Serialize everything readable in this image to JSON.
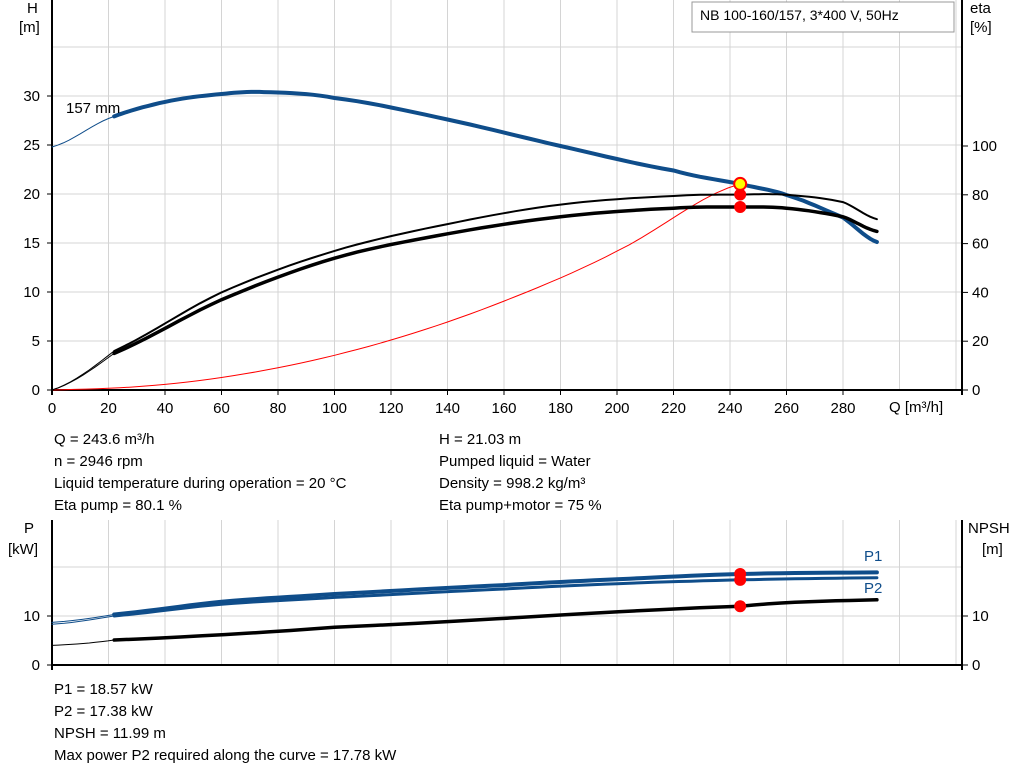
{
  "chart_data": [
    {
      "type": "line",
      "title": "NB 100-160/157, 3*400 V, 50Hz",
      "xlabel": "Q [m³/h]",
      "ylabel": "H\n[m]",
      "y2label": "eta\n[%]",
      "xlim": [
        0,
        322
      ],
      "ylim": [
        0,
        40
      ],
      "y2lim": [
        0,
        160
      ],
      "xticks": [
        0,
        20,
        40,
        60,
        80,
        100,
        120,
        140,
        160,
        180,
        200,
        220,
        240,
        260,
        280
      ],
      "yticks": [
        0,
        5,
        10,
        15,
        20,
        25,
        30
      ],
      "y2ticks": [
        0,
        20,
        40,
        60,
        80,
        100
      ],
      "grid": true,
      "annotation": "157 mm",
      "series": [
        {
          "name": "157 mm",
          "axis": "H",
          "color": "#0f4d8a",
          "x": [
            0,
            20,
            40,
            60,
            75,
            100,
            140,
            180,
            220,
            243.6,
            260,
            280,
            292
          ],
          "y": [
            24.8,
            27.7,
            29.4,
            30.2,
            30.4,
            29.8,
            27.6,
            24.9,
            22.4,
            21.03,
            19.9,
            17.6,
            15.1
          ]
        },
        {
          "axis": "eta",
          "color": "#000000",
          "x": [
            0,
            22,
            60,
            100,
            140,
            180,
            220,
            243.6,
            260,
            280,
            292
          ],
          "y": [
            0,
            16,
            40,
            57,
            68,
            76,
            79.5,
            80.1,
            80,
            77,
            70
          ]
        },
        {
          "axis": "eta",
          "color": "#000000",
          "x": [
            0,
            22,
            60,
            100,
            140,
            180,
            220,
            243.6,
            260,
            280,
            292
          ],
          "y": [
            0,
            15,
            37,
            54,
            64,
            71,
            74.5,
            75,
            74.5,
            71,
            65
          ]
        },
        {
          "axis": "H",
          "color": "#ff0000",
          "x": [
            0,
            40,
            80,
            120,
            160,
            200,
            243.6
          ],
          "y": [
            0,
            0.57,
            2.27,
            5.1,
            9.07,
            14.17,
            21.03
          ]
        }
      ],
      "duty_point": {
        "Q": 243.6,
        "H": 21.03,
        "eta_pump": 80.1,
        "eta_total": 75
      }
    },
    {
      "type": "line",
      "ylabel": "P\n[kW]",
      "y2label": "NPSH\n[m]",
      "xlim": [
        0,
        322
      ],
      "ylim": [
        0,
        30
      ],
      "y2lim": [
        0,
        30
      ],
      "yticks": [
        0,
        10
      ],
      "y2ticks": [
        0,
        10
      ],
      "grid": true,
      "series": [
        {
          "name": "P1",
          "color": "#0f4d8a",
          "x": [
            0,
            22,
            60,
            100,
            160,
            200,
            243.6,
            292
          ],
          "y": [
            8.7,
            10.3,
            12.9,
            14.5,
            16.3,
            17.5,
            18.57,
            18.9
          ]
        },
        {
          "name": "P2",
          "color": "#0f4d8a",
          "x": [
            0,
            22,
            60,
            100,
            160,
            200,
            243.6,
            292
          ],
          "y": [
            8.3,
            10.0,
            12.4,
            13.8,
            15.5,
            16.6,
            17.38,
            17.8
          ]
        },
        {
          "color": "#000000",
          "x": [
            0,
            22,
            100,
            243.6,
            292
          ],
          "y": [
            4.0,
            5.1,
            7.7,
            11.99,
            13.3
          ]
        }
      ],
      "duty_point": {
        "Q": 243.6,
        "P1": 18.57,
        "P2": 17.38,
        "NPSH": 11.99
      }
    }
  ],
  "info": {
    "q": "Q = 243.6 m³/h",
    "h": "H = 21.03 m",
    "n": "n = 2946 rpm",
    "liquid": "Pumped liquid = Water",
    "temp": "Liquid temperature during operation = 20 °C",
    "density": "Density = 998.2 kg/m³",
    "eta_pump": "Eta pump = 80.1 %",
    "eta_total": "Eta pump+motor = 75 %"
  },
  "info2": {
    "p1": "P1 = 18.57 kW",
    "p2": "P2 = 17.38 kW",
    "npsh": "NPSH = 11.99 m",
    "maxp2": "Max power P2 required along the curve = 17.78 kW"
  },
  "labels": {
    "h1": "H",
    "h2": "[m]",
    "e1": "eta",
    "e2": "[%]",
    "p1": "P",
    "p2": "[kW]",
    "n1": "NPSH",
    "n2": "[m]",
    "q": "Q [m³/h]",
    "curve": "157 mm",
    "P1": "P1",
    "P2": "P2"
  }
}
